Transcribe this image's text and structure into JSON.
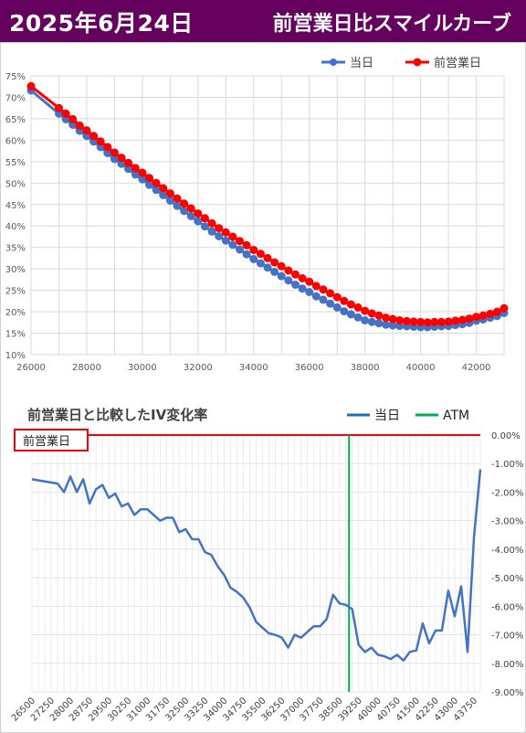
{
  "header": {
    "date": "2025年6月24日",
    "title": "前営業日比スマイルカーブ"
  },
  "chart_data": [
    {
      "type": "line",
      "legend": [
        "当日",
        "前営業日"
      ],
      "legend_position": "top-right",
      "grid": true,
      "xlim": [
        26000,
        43000
      ],
      "xticks": [
        26000,
        28000,
        30000,
        32000,
        34000,
        36000,
        38000,
        40000,
        42000
      ],
      "ylim": [
        0.1,
        0.75
      ],
      "yticks": [
        "10%",
        "15%",
        "20%",
        "25%",
        "30%",
        "35%",
        "40%",
        "45%",
        "50%",
        "55%",
        "60%",
        "65%",
        "70%",
        "75%"
      ],
      "colors": {
        "当日": "#4472c4",
        "前営業日": "#ff0000"
      },
      "series": [
        {
          "name": "当日",
          "x": [
            26000,
            27000,
            27250,
            27500,
            27750,
            28000,
            28250,
            28500,
            28750,
            29000,
            29250,
            29500,
            29750,
            30000,
            30250,
            30500,
            30750,
            31000,
            31250,
            31500,
            31750,
            32000,
            32250,
            32500,
            32750,
            33000,
            33250,
            33500,
            33750,
            34000,
            34250,
            34500,
            34750,
            35000,
            35250,
            35500,
            35750,
            36000,
            36250,
            36500,
            36750,
            37000,
            37250,
            37500,
            37750,
            38000,
            38250,
            38500,
            38750,
            39000,
            39250,
            39500,
            39750,
            40000,
            40250,
            40500,
            40750,
            41000,
            41250,
            41500,
            41750,
            42000,
            42250,
            42500,
            42750,
            43000
          ],
          "y": [
            0.716,
            0.662,
            0.649,
            0.636,
            0.622,
            0.61,
            0.597,
            0.584,
            0.57,
            0.556,
            0.545,
            0.533,
            0.52,
            0.509,
            0.496,
            0.484,
            0.472,
            0.459,
            0.447,
            0.435,
            0.423,
            0.411,
            0.399,
            0.387,
            0.376,
            0.366,
            0.356,
            0.345,
            0.334,
            0.323,
            0.313,
            0.303,
            0.293,
            0.283,
            0.273,
            0.263,
            0.254,
            0.246,
            0.236,
            0.228,
            0.219,
            0.21,
            0.201,
            0.194,
            0.187,
            0.18,
            0.176,
            0.173,
            0.17,
            0.168,
            0.167,
            0.166,
            0.165,
            0.164,
            0.164,
            0.165,
            0.166,
            0.167,
            0.169,
            0.171,
            0.174,
            0.179,
            0.182,
            0.186,
            0.19,
            0.197
          ]
        },
        {
          "name": "前営業日",
          "x": [
            26000,
            27000,
            27250,
            27500,
            27750,
            28000,
            28250,
            28500,
            28750,
            29000,
            29250,
            29500,
            29750,
            30000,
            30250,
            30500,
            30750,
            31000,
            31250,
            31500,
            31750,
            32000,
            32250,
            32500,
            32750,
            33000,
            33250,
            33500,
            33750,
            34000,
            34250,
            34500,
            34750,
            35000,
            35250,
            35500,
            35750,
            36000,
            36250,
            36500,
            36750,
            37000,
            37250,
            37500,
            37750,
            38000,
            38250,
            38500,
            38750,
            39000,
            39250,
            39500,
            39750,
            40000,
            40250,
            40500,
            40750,
            41000,
            41250,
            41500,
            41750,
            42000,
            42250,
            42500,
            42750,
            43000
          ],
          "y": [
            0.726,
            0.675,
            0.662,
            0.649,
            0.634,
            0.623,
            0.61,
            0.597,
            0.584,
            0.571,
            0.559,
            0.547,
            0.535,
            0.524,
            0.512,
            0.5,
            0.488,
            0.476,
            0.464,
            0.452,
            0.441,
            0.429,
            0.418,
            0.406,
            0.395,
            0.385,
            0.375,
            0.365,
            0.355,
            0.344,
            0.335,
            0.325,
            0.315,
            0.306,
            0.296,
            0.287,
            0.278,
            0.27,
            0.26,
            0.252,
            0.243,
            0.234,
            0.225,
            0.217,
            0.21,
            0.202,
            0.196,
            0.191,
            0.186,
            0.183,
            0.18,
            0.178,
            0.177,
            0.176,
            0.175,
            0.176,
            0.176,
            0.177,
            0.179,
            0.181,
            0.184,
            0.188,
            0.191,
            0.195,
            0.2,
            0.208
          ]
        }
      ]
    },
    {
      "type": "line",
      "title": "前営業日と比較したIV変化率",
      "label": "前営業日",
      "legend": [
        "当日",
        "ATM"
      ],
      "legend_position": "top-right",
      "ylim": [
        -0.09,
        0.0
      ],
      "yticks": [
        "0.00%",
        "-1.00%",
        "-2.00%",
        "-3.00%",
        "-4.00%",
        "-5.00%",
        "-6.00%",
        "-7.00%",
        "-8.00%",
        "-9.00%"
      ],
      "xticks": [
        "26500",
        "27250",
        "28000",
        "28750",
        "29500",
        "30250",
        "31000",
        "31750",
        "32500",
        "33250",
        "34000",
        "34750",
        "35500",
        "36250",
        "37000",
        "37750",
        "38500",
        "39250",
        "40000",
        "40750",
        "41500",
        "42250",
        "43000",
        "43750"
      ],
      "atm": 38875,
      "colors": {
        "当日": "#4472c4",
        "legend_当日": "#1f6fb4",
        "ATM": "#00b050",
        "zero": "#ff0000"
      },
      "series": [
        {
          "name": "当日",
          "x": [
            26500,
            27500,
            27750,
            28000,
            28250,
            28500,
            28750,
            29000,
            29250,
            29500,
            29750,
            30000,
            30250,
            30500,
            30750,
            31000,
            31250,
            31500,
            31750,
            32000,
            32250,
            32500,
            32750,
            33000,
            33250,
            33500,
            33750,
            34000,
            34250,
            34500,
            34750,
            35000,
            35250,
            35500,
            35750,
            36000,
            36250,
            36500,
            36750,
            37000,
            37250,
            37500,
            37750,
            38000,
            38250,
            38500,
            38750,
            39000,
            39250,
            39500,
            39750,
            40000,
            40250,
            40500,
            40750,
            41000,
            41250,
            41500,
            41750,
            42000,
            42250,
            42500,
            42750,
            43000,
            43250,
            43500,
            43750,
            44000
          ],
          "y": [
            -0.0155,
            -0.017,
            -0.02,
            -0.0145,
            -0.02,
            -0.0155,
            -0.024,
            -0.019,
            -0.0175,
            -0.022,
            -0.0205,
            -0.025,
            -0.024,
            -0.028,
            -0.026,
            -0.026,
            -0.028,
            -0.03,
            -0.029,
            -0.029,
            -0.034,
            -0.033,
            -0.0365,
            -0.0365,
            -0.041,
            -0.042,
            -0.046,
            -0.049,
            -0.0535,
            -0.055,
            -0.057,
            -0.0605,
            -0.0655,
            -0.0675,
            -0.0695,
            -0.07,
            -0.071,
            -0.0745,
            -0.07,
            -0.071,
            -0.069,
            -0.067,
            -0.067,
            -0.0645,
            -0.056,
            -0.059,
            -0.0595,
            -0.061,
            -0.0735,
            -0.076,
            -0.0745,
            -0.077,
            -0.0775,
            -0.0785,
            -0.077,
            -0.079,
            -0.076,
            -0.0755,
            -0.066,
            -0.073,
            -0.0685,
            -0.0685,
            -0.0545,
            -0.0635,
            -0.053,
            -0.076,
            -0.036,
            -0.012
          ]
        }
      ]
    }
  ]
}
